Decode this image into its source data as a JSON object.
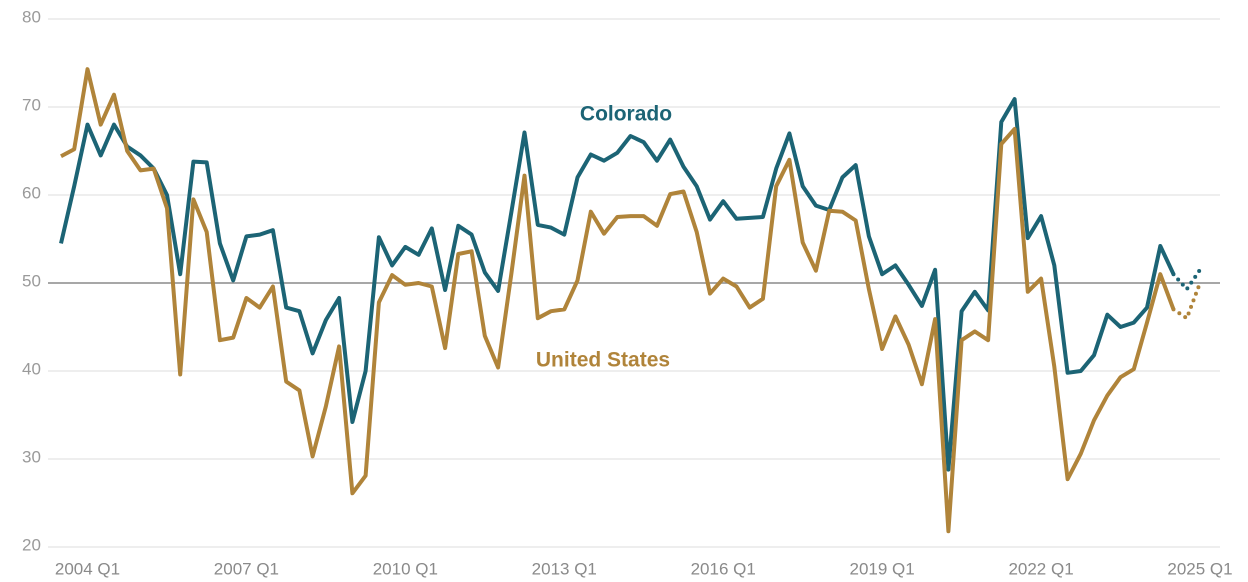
{
  "chart_data": {
    "type": "line",
    "categories": [
      null,
      null,
      "2004 Q1",
      null,
      null,
      null,
      null,
      null,
      null,
      null,
      null,
      null,
      null,
      null,
      "2007 Q1",
      null,
      null,
      null,
      null,
      null,
      null,
      null,
      null,
      null,
      null,
      null,
      "2010 Q1",
      null,
      null,
      null,
      null,
      null,
      null,
      null,
      null,
      null,
      null,
      null,
      "2013 Q1",
      null,
      null,
      null,
      null,
      null,
      null,
      null,
      null,
      null,
      null,
      null,
      "2016 Q1",
      null,
      null,
      null,
      null,
      null,
      null,
      null,
      null,
      null,
      null,
      null,
      "2019 Q1",
      null,
      null,
      null,
      null,
      null,
      null,
      null,
      null,
      null,
      null,
      null,
      "2022 Q1",
      null,
      null,
      null,
      null,
      null,
      null,
      null,
      null,
      null,
      null,
      null,
      "2025 Q1"
    ],
    "series": [
      {
        "name": "Colorado",
        "color": "#1c6475",
        "dotted_from": 84,
        "values": [
          54.5,
          61,
          68,
          64.5,
          68,
          65.5,
          64.5,
          63,
          60,
          51,
          63.8,
          63.7,
          54.5,
          50.3,
          55.3,
          55.5,
          56,
          47.2,
          46.8,
          42,
          45.8,
          48.3,
          34.2,
          40,
          55.2,
          52,
          54.1,
          53.2,
          56.2,
          49.2,
          56.5,
          55.5,
          51.2,
          49.1,
          58,
          67.1,
          56.6,
          56.3,
          55.5,
          62,
          64.6,
          63.9,
          64.8,
          66.7,
          66,
          63.9,
          66.3,
          63.2,
          61,
          57.2,
          59.3,
          57.3,
          57.4,
          57.5,
          63,
          67,
          61,
          58.8,
          58.3,
          62,
          63.4,
          55.3,
          51,
          52,
          49.8,
          47.4,
          51.5,
          28.8,
          46.8,
          49,
          46.9,
          68.3,
          70.9,
          55.1,
          57.6,
          52,
          39.8,
          40,
          41.8,
          46.4,
          45,
          45.5,
          47.2,
          54.2,
          51,
          49.3,
          51.5
        ]
      },
      {
        "name": "United States",
        "color": "#b0843a",
        "dotted_from": 84,
        "values": [
          64.4,
          65.2,
          74.3,
          68,
          71.4,
          65,
          62.8,
          63,
          58.5,
          39.6,
          59.5,
          55.8,
          43.5,
          43.8,
          48.3,
          47.2,
          49.6,
          38.8,
          37.8,
          30.3,
          36,
          42.8,
          26.1,
          28.1,
          47.8,
          50.9,
          49.8,
          50,
          49.6,
          42.6,
          53.3,
          53.6,
          44,
          40.4,
          51,
          62.2,
          46,
          46.8,
          47,
          50.3,
          58.1,
          55.6,
          57.5,
          57.6,
          57.6,
          56.5,
          60.1,
          60.4,
          55.8,
          48.8,
          50.5,
          49.6,
          47.2,
          48.2,
          61,
          64,
          54.6,
          51.4,
          58.2,
          58.1,
          57.1,
          49.3,
          42.5,
          46.2,
          43,
          38.5,
          45.9,
          21.8,
          43.5,
          44.5,
          43.5,
          65.8,
          67.5,
          49,
          50.5,
          40.5,
          27.7,
          30.6,
          34.4,
          37.2,
          39.3,
          40.2,
          45.5,
          51,
          47,
          46,
          50
        ]
      }
    ],
    "ylim": [
      20,
      80
    ],
    "yticks": [
      20,
      30,
      40,
      50,
      60,
      70,
      80
    ],
    "grid": true,
    "reference_line": 50
  }
}
